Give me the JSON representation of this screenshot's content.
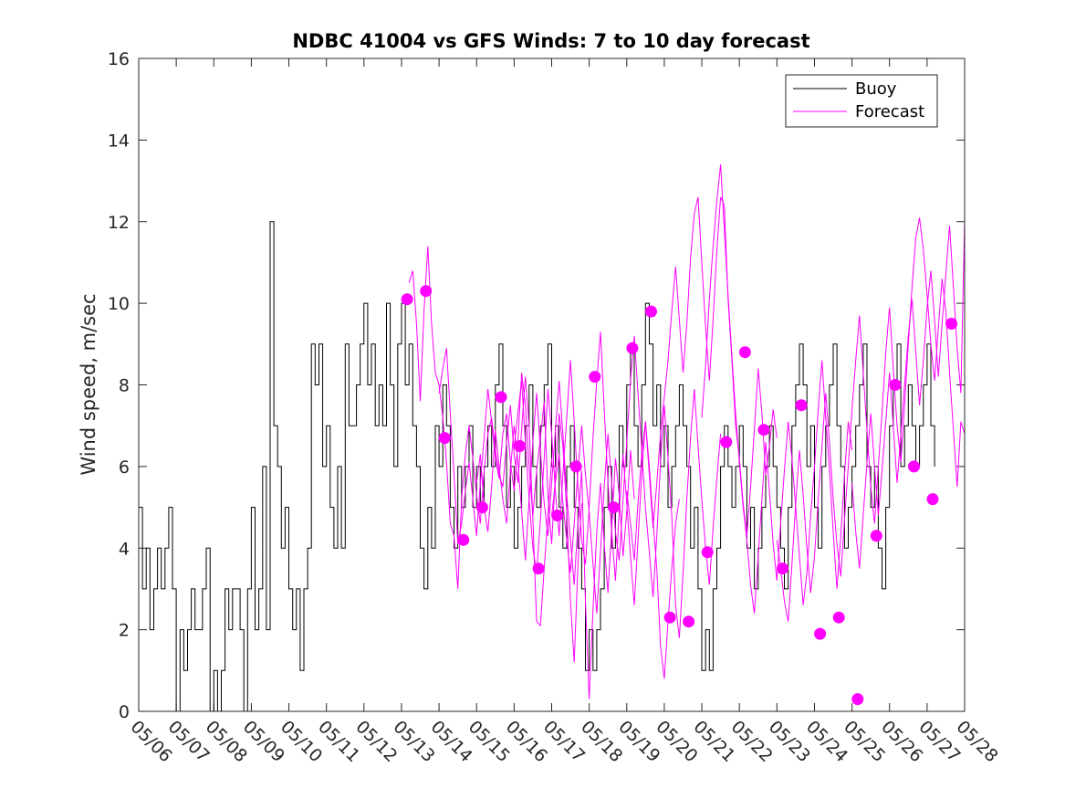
{
  "chart_data": {
    "type": "line",
    "title": "NDBC 41004 vs GFS Winds: 7 to 10 day forecast",
    "xlabel": "",
    "ylabel": "Wind speed, m/sec",
    "ylim": [
      0,
      16
    ],
    "yticks": [
      "0",
      "2",
      "4",
      "6",
      "8",
      "10",
      "12",
      "14",
      "16"
    ],
    "xlim": [
      0,
      22
    ],
    "xtick_labels": [
      "05/06",
      "05/07",
      "05/08",
      "05/09",
      "05/10",
      "05/11",
      "05/12",
      "05/13",
      "05/14",
      "05/15",
      "05/16",
      "05/17",
      "05/18",
      "05/19",
      "05/20",
      "05/21",
      "05/22",
      "05/23",
      "05/24",
      "05/25",
      "05/26",
      "05/27",
      "05/28"
    ],
    "x_units": "days since 05/06 00:00",
    "legend": {
      "position": "top-right",
      "entries": [
        "Buoy",
        "Forecast"
      ]
    },
    "grid": false,
    "colors": {
      "buoy": "#000000",
      "forecast": "#ff00ff",
      "axis": "#262626"
    },
    "buoy": {
      "name": "Buoy",
      "x": [
        0,
        0.1,
        0.2,
        0.3,
        0.4,
        0.5,
        0.6,
        0.7,
        0.8,
        0.9,
        1.0,
        1.1,
        1.2,
        1.3,
        1.4,
        1.5,
        1.6,
        1.7,
        1.8,
        1.9,
        2.0,
        2.1,
        2.2,
        2.3,
        2.4,
        2.5,
        2.6,
        2.7,
        2.8,
        2.9,
        3.0,
        3.1,
        3.2,
        3.3,
        3.4,
        3.5,
        3.6,
        3.7,
        3.8,
        3.9,
        4.0,
        4.1,
        4.2,
        4.3,
        4.4,
        4.5,
        4.6,
        4.7,
        4.8,
        4.9,
        5.0,
        5.1,
        5.2,
        5.3,
        5.4,
        5.5,
        5.6,
        5.7,
        5.8,
        5.9,
        6.0,
        6.1,
        6.2,
        6.3,
        6.4,
        6.5,
        6.6,
        6.7,
        6.8,
        6.9,
        7.0,
        7.1,
        7.2,
        7.3,
        7.4,
        7.5,
        7.6,
        7.7,
        7.8,
        7.9,
        8.0,
        8.1,
        8.2,
        8.3,
        8.4,
        8.5,
        8.6,
        8.7,
        8.8,
        8.9,
        9.0,
        9.1,
        9.2,
        9.3,
        9.4,
        9.5,
        9.6,
        9.7,
        9.8,
        9.9,
        10.0,
        10.1,
        10.2,
        10.3,
        10.4,
        10.5,
        10.6,
        10.7,
        10.8,
        10.9,
        11.0,
        11.1,
        11.2,
        11.3,
        11.4,
        11.5,
        11.6,
        11.7,
        11.8,
        11.9,
        12.0,
        12.1,
        12.2,
        12.3,
        12.4,
        12.5,
        12.6,
        12.7,
        12.8,
        12.9,
        13.0,
        13.1,
        13.2,
        13.3,
        13.4,
        13.5,
        13.6,
        13.7,
        13.8,
        13.9,
        14.0,
        14.1,
        14.2,
        14.3,
        14.4,
        14.5,
        14.6,
        14.7,
        14.8,
        14.9,
        15.0,
        15.1,
        15.2,
        15.3,
        15.4,
        15.5,
        15.6,
        15.7,
        15.8,
        15.9,
        16.0,
        16.1,
        16.2,
        16.3,
        16.4,
        16.5,
        16.6,
        16.7,
        16.8,
        16.9,
        17.0,
        17.1,
        17.2,
        17.3,
        17.4,
        17.5,
        17.6,
        17.7,
        17.8,
        17.9,
        18.0,
        18.1,
        18.2,
        18.3,
        18.4,
        18.5,
        18.6,
        18.7,
        18.8,
        18.9,
        19.0,
        19.1,
        19.2,
        19.3,
        19.4,
        19.5,
        19.6,
        19.7,
        19.8,
        19.9,
        20.0,
        20.1,
        20.2,
        20.3,
        20.4,
        20.5,
        20.6,
        20.7,
        20.8,
        20.9,
        21.0,
        21.1,
        21.2
      ],
      "y": [
        5,
        3,
        4,
        2,
        3,
        4,
        3,
        4,
        5,
        3,
        0,
        2,
        1,
        2,
        3,
        2,
        2,
        3,
        4,
        0,
        1,
        0,
        1,
        3,
        2,
        3,
        3,
        2,
        0,
        3,
        5,
        2,
        3,
        6,
        2,
        12,
        7,
        6,
        4,
        5,
        3,
        2,
        3,
        1,
        3,
        4,
        9,
        8,
        9,
        6,
        7,
        5,
        4,
        6,
        4,
        9,
        7,
        7,
        8,
        9,
        10,
        8,
        9,
        7,
        8,
        7,
        10,
        8,
        6,
        9,
        10,
        8,
        9,
        7,
        6,
        4,
        3,
        5,
        4,
        7,
        6,
        8,
        7,
        5,
        4,
        6,
        5,
        6,
        7,
        5,
        6,
        5,
        6,
        7,
        6,
        8,
        9,
        7,
        5,
        6,
        4,
        5,
        6,
        7,
        8,
        6,
        5,
        7,
        8,
        9,
        6,
        7,
        5,
        4,
        6,
        7,
        5,
        4,
        3,
        1,
        2,
        1,
        2,
        3,
        5,
        6,
        4,
        5,
        7,
        6,
        8,
        9,
        7,
        6,
        8,
        10,
        9,
        7,
        8,
        6,
        7,
        5,
        6,
        7,
        8,
        7,
        6,
        4,
        5,
        3,
        1,
        2,
        1,
        3,
        4,
        6,
        7,
        6,
        5,
        6,
        7,
        6,
        4,
        5,
        3,
        4,
        5,
        6,
        7,
        6,
        5,
        4,
        3,
        5,
        7,
        8,
        9,
        8,
        6,
        7,
        5,
        4,
        6,
        7,
        8,
        9,
        7,
        6,
        4,
        5,
        6,
        7,
        8,
        9,
        6,
        5,
        6,
        4,
        3,
        5,
        7,
        8,
        9,
        6,
        7,
        8,
        7,
        6,
        7,
        8,
        9,
        7,
        6
      ]
    },
    "forecast_lines": [
      {
        "x": [
          7.2,
          7.3,
          7.4,
          7.5,
          7.6,
          7.7,
          7.8,
          7.9,
          8.0,
          8.1,
          8.2,
          8.3,
          8.4,
          8.5,
          8.6,
          8.7,
          8.8,
          8.9,
          9.0,
          9.1,
          9.2,
          9.3,
          9.4,
          9.5,
          9.6,
          9.7,
          9.8,
          9.9,
          10.0,
          10.1,
          10.2,
          10.3,
          10.4,
          10.5,
          10.6,
          10.7,
          10.8,
          10.9,
          11.0
        ],
        "y": [
          10.5,
          10.8,
          9.5,
          7.6,
          9.8,
          11.4,
          9.5,
          8.3,
          8.0,
          7.2,
          6.1,
          4.6,
          4.3,
          3.0,
          5.2,
          6.3,
          7.0,
          6.2,
          5.3,
          4.6,
          5.9,
          6.8,
          7.2,
          6.4,
          5.8,
          5.5,
          6.6,
          7.5,
          6.3,
          5.6,
          6.9,
          8.2,
          7.0,
          4.7,
          2.2,
          2.1,
          3.5,
          4.8,
          6.2
        ]
      },
      {
        "x": [
          8.0,
          8.1,
          8.2,
          8.3,
          8.4,
          8.5,
          8.6,
          8.7,
          8.8,
          8.9,
          9.0,
          9.1,
          9.2,
          9.3,
          9.4,
          9.5,
          9.6,
          9.7,
          9.8,
          9.9,
          10.0,
          10.1,
          10.2,
          10.3,
          10.4,
          10.5,
          10.6,
          10.7,
          10.8,
          10.9,
          11.0,
          11.1,
          11.2,
          11.3,
          11.4,
          11.5,
          11.6,
          11.7,
          11.8
        ],
        "y": [
          7.8,
          8.4,
          8.9,
          7.3,
          5.8,
          4.1,
          4.6,
          5.4,
          6.1,
          5.2,
          4.3,
          5.6,
          6.7,
          7.9,
          7.1,
          6.2,
          5.7,
          6.8,
          7.3,
          6.1,
          5.4,
          6.6,
          8.3,
          7.5,
          6.0,
          4.8,
          5.9,
          6.7,
          7.6,
          5.3,
          4.1,
          5.8,
          7.3,
          6.5,
          4.9,
          2.7,
          1.2,
          3.6,
          5.1
        ]
      },
      {
        "x": [
          9.0,
          9.1,
          9.2,
          9.3,
          9.4,
          9.5,
          9.6,
          9.7,
          9.8,
          9.9,
          10.0,
          10.1,
          10.2,
          10.3,
          10.4,
          10.5,
          10.6,
          10.7,
          10.8,
          10.9,
          11.0,
          11.1,
          11.2,
          11.3,
          11.4,
          11.5,
          11.6,
          11.7,
          11.8,
          11.9,
          12.0,
          12.1,
          12.2,
          12.3,
          12.4,
          12.5,
          12.6,
          12.7,
          12.8,
          12.9,
          13.0,
          13.1,
          13.2
        ],
        "y": [
          5.6,
          6.3,
          5.0,
          4.4,
          5.5,
          6.9,
          6.0,
          5.2,
          4.6,
          5.9,
          7.0,
          6.1,
          4.9,
          3.7,
          5.2,
          6.6,
          7.8,
          6.4,
          5.1,
          4.3,
          5.6,
          6.9,
          8.1,
          6.8,
          5.3,
          4.2,
          3.1,
          4.6,
          5.9,
          2.7,
          0.3,
          2.5,
          4.4,
          5.6,
          4.1,
          2.9,
          4.5,
          6.2,
          5.3,
          3.8,
          4.9,
          6.4,
          5.2
        ]
      },
      {
        "x": [
          10.0,
          10.1,
          10.2,
          10.3,
          10.4,
          10.5,
          10.6,
          10.7,
          10.8,
          10.9,
          11.0,
          11.1,
          11.2,
          11.3,
          11.4,
          11.5,
          11.6,
          11.7,
          11.8,
          11.9,
          12.0,
          12.1,
          12.2,
          12.3,
          12.4,
          12.5,
          12.6,
          12.7,
          12.8,
          12.9,
          13.0,
          13.1,
          13.2,
          13.3,
          13.4,
          13.5,
          13.6,
          13.7,
          13.8,
          13.9,
          14.0,
          14.1,
          14.2,
          14.3,
          14.4
        ],
        "y": [
          6.5,
          7.3,
          8.1,
          6.6,
          5.2,
          4.0,
          3.4,
          4.7,
          6.2,
          7.9,
          6.8,
          5.4,
          4.3,
          5.8,
          7.2,
          8.6,
          7.1,
          5.5,
          4.2,
          3.6,
          5.0,
          6.7,
          8.1,
          9.3,
          7.4,
          5.6,
          4.4,
          3.2,
          4.9,
          6.3,
          5.1,
          3.8,
          2.6,
          4.2,
          5.8,
          7.1,
          6.0,
          4.7,
          3.5,
          1.6,
          0.8,
          2.2,
          3.5,
          4.6,
          5.2
        ]
      },
      {
        "x": [
          11.0,
          11.1,
          11.2,
          11.3,
          11.4,
          11.5,
          11.6,
          11.7,
          11.8,
          11.9,
          12.0,
          12.1,
          12.2,
          12.3,
          12.4,
          12.5,
          12.6,
          12.7,
          12.8,
          12.9,
          13.0,
          13.1,
          13.2,
          13.3,
          13.4,
          13.5,
          13.6,
          13.7,
          13.8,
          13.9,
          14.0,
          14.1,
          14.2,
          14.3,
          14.4,
          14.5,
          14.6,
          14.7,
          14.8,
          14.9,
          15.0,
          15.1,
          15.2,
          15.3,
          15.4,
          15.5
        ],
        "y": [
          4.8,
          5.6,
          6.3,
          5.1,
          4.2,
          3.4,
          4.6,
          5.9,
          7.0,
          5.8,
          4.9,
          3.6,
          2.4,
          3.9,
          5.5,
          6.8,
          5.6,
          4.4,
          3.7,
          5.2,
          6.6,
          8.1,
          9.2,
          7.8,
          6.4,
          5.0,
          3.9,
          2.8,
          4.3,
          6.1,
          7.5,
          6.2,
          4.8,
          2.6,
          1.8,
          3.4,
          5.2,
          6.7,
          7.9,
          6.5,
          5.2,
          4.0,
          3.1,
          4.5,
          5.7,
          6.8
        ]
      },
      {
        "x": [
          13.0,
          13.1,
          13.2,
          13.3,
          13.4,
          13.5,
          13.6,
          13.7,
          13.8,
          13.9,
          14.0,
          14.1,
          14.2,
          14.3,
          14.4,
          14.5,
          14.6,
          14.7,
          14.8,
          14.9,
          15.0,
          15.1,
          15.2,
          15.3,
          15.4,
          15.5,
          15.6,
          15.7,
          15.8,
          15.9,
          16.0,
          16.1,
          16.2,
          16.3,
          16.4,
          16.5,
          16.6,
          16.7,
          16.8,
          16.9,
          17.0
        ],
        "y": [
          5.4,
          4.6,
          3.7,
          5.1,
          6.3,
          7.1,
          5.8,
          4.5,
          5.6,
          6.8,
          7.7,
          8.6,
          9.8,
          10.9,
          9.6,
          8.3,
          9.5,
          11.1,
          12.2,
          12.6,
          11.0,
          9.4,
          8.1,
          9.6,
          11.3,
          12.6,
          12.4,
          10.1,
          8.6,
          7.0,
          6.2,
          5.1,
          4.3,
          5.5,
          6.9,
          8.4,
          7.3,
          5.8,
          6.5,
          7.4,
          6.7
        ]
      },
      {
        "x": [
          15.0,
          15.1,
          15.2,
          15.3,
          15.4,
          15.5,
          15.6,
          15.7,
          15.8,
          15.9,
          16.0,
          16.1,
          16.2,
          16.3,
          16.4,
          16.5,
          16.6,
          16.7,
          16.8,
          16.9,
          17.0,
          17.1,
          17.2,
          17.3,
          17.4,
          17.5,
          17.6,
          17.7,
          17.8,
          17.9,
          18.0,
          18.1,
          18.2,
          18.3,
          18.4,
          18.5,
          18.6,
          18.7,
          18.8,
          18.9,
          19.0
        ],
        "y": [
          7.2,
          8.5,
          10.1,
          11.4,
          12.5,
          13.4,
          11.8,
          10.2,
          8.7,
          7.3,
          6.1,
          5.0,
          4.2,
          3.1,
          2.4,
          3.8,
          5.2,
          6.6,
          5.4,
          4.1,
          3.2,
          4.6,
          5.9,
          7.1,
          6.2,
          5.0,
          3.8,
          2.6,
          3.4,
          4.8,
          6.0,
          7.4,
          8.6,
          7.2,
          5.9,
          4.4,
          3.0,
          4.3,
          5.8,
          7.1,
          6.4
        ]
      },
      {
        "x": [
          17.0,
          17.1,
          17.2,
          17.3,
          17.4,
          17.5,
          17.6,
          17.7,
          17.8,
          17.9,
          18.0,
          18.1,
          18.2,
          18.3,
          18.4,
          18.5,
          18.6,
          18.7,
          18.8,
          18.9,
          19.0,
          19.1,
          19.2,
          19.3,
          19.4,
          19.5,
          19.6,
          19.7,
          19.8,
          19.9,
          20.0,
          20.1,
          20.2,
          20.3,
          20.4,
          20.5,
          20.6,
          20.7,
          20.8,
          20.9,
          21.0,
          21.1,
          21.2,
          21.3,
          21.4,
          21.5,
          21.6,
          21.7,
          21.8,
          21.9,
          22.0
        ],
        "y": [
          4.2,
          3.5,
          2.7,
          2.2,
          3.6,
          5.1,
          6.4,
          5.3,
          4.0,
          2.9,
          3.8,
          5.2,
          6.5,
          7.8,
          6.6,
          5.2,
          4.1,
          3.3,
          4.7,
          6.0,
          7.4,
          8.6,
          9.7,
          8.3,
          6.9,
          5.5,
          4.6,
          6.0,
          7.3,
          8.8,
          9.9,
          8.4,
          7.0,
          6.1,
          7.5,
          9.0,
          10.4,
          11.6,
          12.1,
          11.3,
          10.2,
          9.0,
          8.1,
          9.4,
          10.6,
          9.8,
          8.3,
          6.9,
          5.5,
          7.1,
          6.8
        ]
      },
      {
        "x": [
          19.0,
          19.1,
          19.2,
          19.3,
          19.4,
          19.5,
          19.6,
          19.7,
          19.8,
          19.9,
          20.0,
          20.1,
          20.2,
          20.3,
          20.4,
          20.5,
          20.6,
          20.7,
          20.8,
          20.9,
          21.0,
          21.1,
          21.2,
          21.3,
          21.4,
          21.5,
          21.6,
          21.7,
          21.8,
          21.9,
          22.0
        ],
        "y": [
          5.6,
          4.4,
          3.5,
          4.8,
          6.1,
          7.3,
          6.0,
          4.8,
          5.9,
          7.1,
          8.3,
          7.0,
          5.6,
          6.8,
          8.0,
          9.2,
          10.1,
          8.8,
          7.5,
          8.6,
          9.9,
          10.8,
          9.6,
          8.2,
          9.5,
          10.7,
          11.9,
          10.4,
          8.9,
          7.8,
          12.0
        ]
      }
    ],
    "forecast_markers": {
      "x": [
        7.15,
        7.65,
        8.15,
        8.65,
        9.15,
        9.65,
        10.15,
        10.65,
        11.15,
        11.65,
        12.15,
        12.65,
        13.15,
        13.65,
        14.15,
        14.65,
        15.15,
        15.65,
        16.15,
        16.65,
        17.15,
        17.65,
        18.15,
        18.65,
        19.15,
        19.65,
        20.15,
        20.65,
        21.15,
        21.65
      ],
      "y": [
        10.1,
        10.3,
        6.7,
        4.2,
        5.0,
        7.7,
        6.5,
        3.5,
        4.8,
        6.0,
        8.2,
        5.0,
        8.9,
        9.8,
        2.3,
        2.2,
        3.9,
        6.6,
        8.8,
        6.9,
        3.5,
        7.5,
        1.9,
        2.3,
        0.3,
        4.3,
        8.0,
        6.0,
        5.2,
        9.5
      ]
    }
  }
}
